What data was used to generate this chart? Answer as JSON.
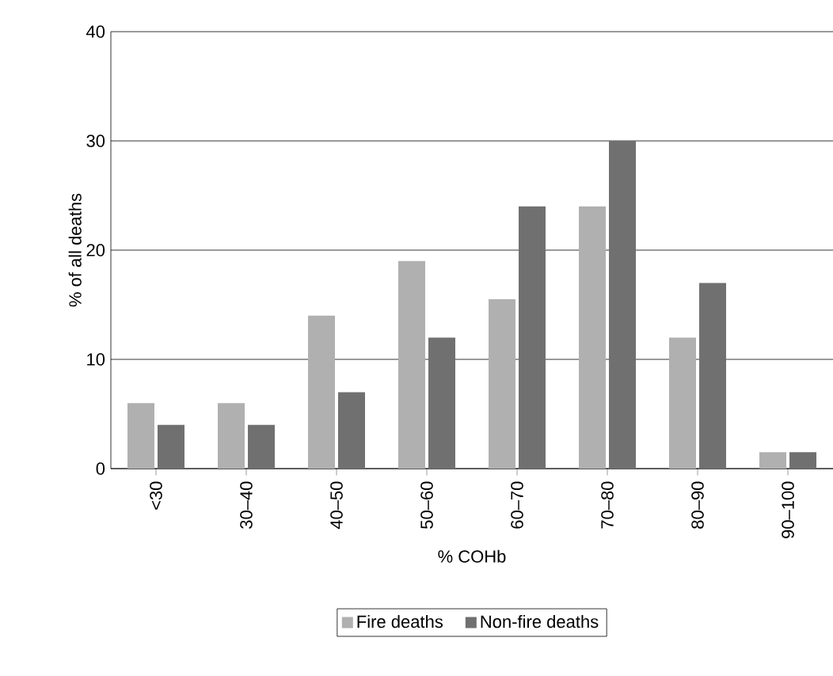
{
  "chart_data": {
    "type": "bar",
    "xlabel": "% COHb",
    "ylabel": "% of all deaths",
    "categories": [
      "<30",
      "30–40",
      "40–50",
      "50–60",
      "60–70",
      "70–80",
      "80–90",
      "90–100"
    ],
    "series": [
      {
        "name": "Fire deaths",
        "color": "#b0b0b0",
        "values": [
          6,
          6,
          14,
          19,
          15.5,
          24,
          12,
          1.5
        ]
      },
      {
        "name": "Non-fire deaths",
        "color": "#707070",
        "values": [
          4,
          4,
          7,
          12,
          24,
          30,
          17,
          1.5
        ]
      }
    ],
    "ylim": [
      0,
      40
    ],
    "yticks": [
      0,
      10,
      20,
      30,
      40
    ],
    "grid": "y",
    "legend": "bottom"
  }
}
